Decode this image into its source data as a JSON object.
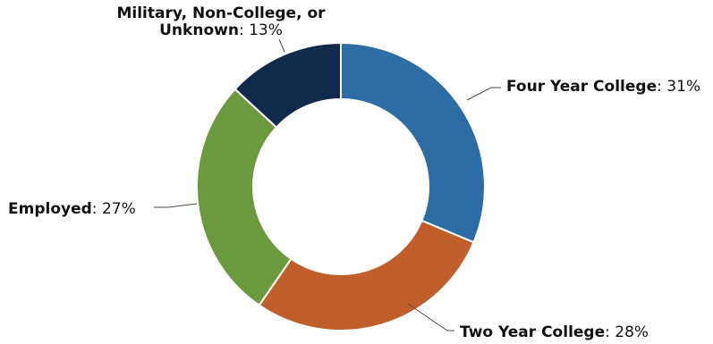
{
  "chart_data": {
    "type": "pie",
    "donut": true,
    "title": "",
    "slices": [
      {
        "category": "Four Year College",
        "value": 31,
        "value_label": "31%",
        "color": "#2e6ca5"
      },
      {
        "category": "Two Year College",
        "value": 28,
        "value_label": "28%",
        "color": "#c05f2b"
      },
      {
        "category": "Employed",
        "value": 27,
        "value_label": "27%",
        "color": "#6b9a3e"
      },
      {
        "category": "Military, Non-College, or Unknown",
        "value": 13,
        "value_label": "13%",
        "color": "#0f2a4a"
      }
    ],
    "legend": "none",
    "label_separator": ": "
  }
}
